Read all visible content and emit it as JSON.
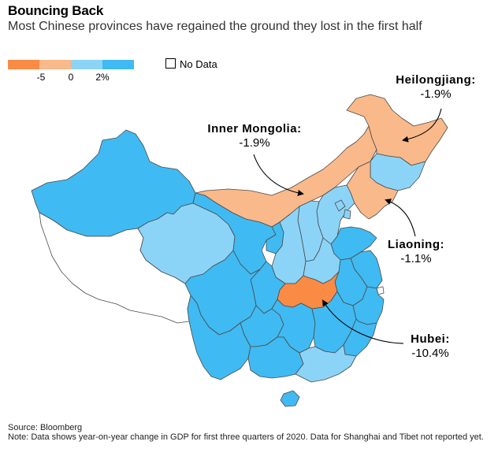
{
  "title": "Bouncing Back",
  "subtitle": "Most Chinese provinces have regained the ground they lost in the first half",
  "legend": {
    "colors": [
      "#F98B45",
      "#F9B98A",
      "#8CD4F7",
      "#40BAF2"
    ],
    "ticks": [
      "-5",
      "0",
      "2%"
    ],
    "no_data_label": "No Data"
  },
  "colors": {
    "strong_decline": "#F98B45",
    "decline": "#F9B98A",
    "small_growth": "#8CD4F7",
    "growth": "#40BAF2",
    "no_data": "#FFFFFF",
    "border": "#4A4A4A"
  },
  "annotations": {
    "heilongjiang": {
      "name": "Heilongjiang:",
      "value": "-1.9%"
    },
    "inner_mongolia": {
      "name": "Inner Mongolia:",
      "value": "-1.9%"
    },
    "liaoning": {
      "name": "Liaoning:",
      "value": "-1.1%"
    },
    "hubei": {
      "name": "Hubei:",
      "value": "-10.4%"
    }
  },
  "footer": {
    "source": "Source: Bloomberg",
    "note": "Note: Data shows year-on-year change in GDP for first three quarters of 2020. Data for Shanghai and Tibet not reported yet."
  }
}
